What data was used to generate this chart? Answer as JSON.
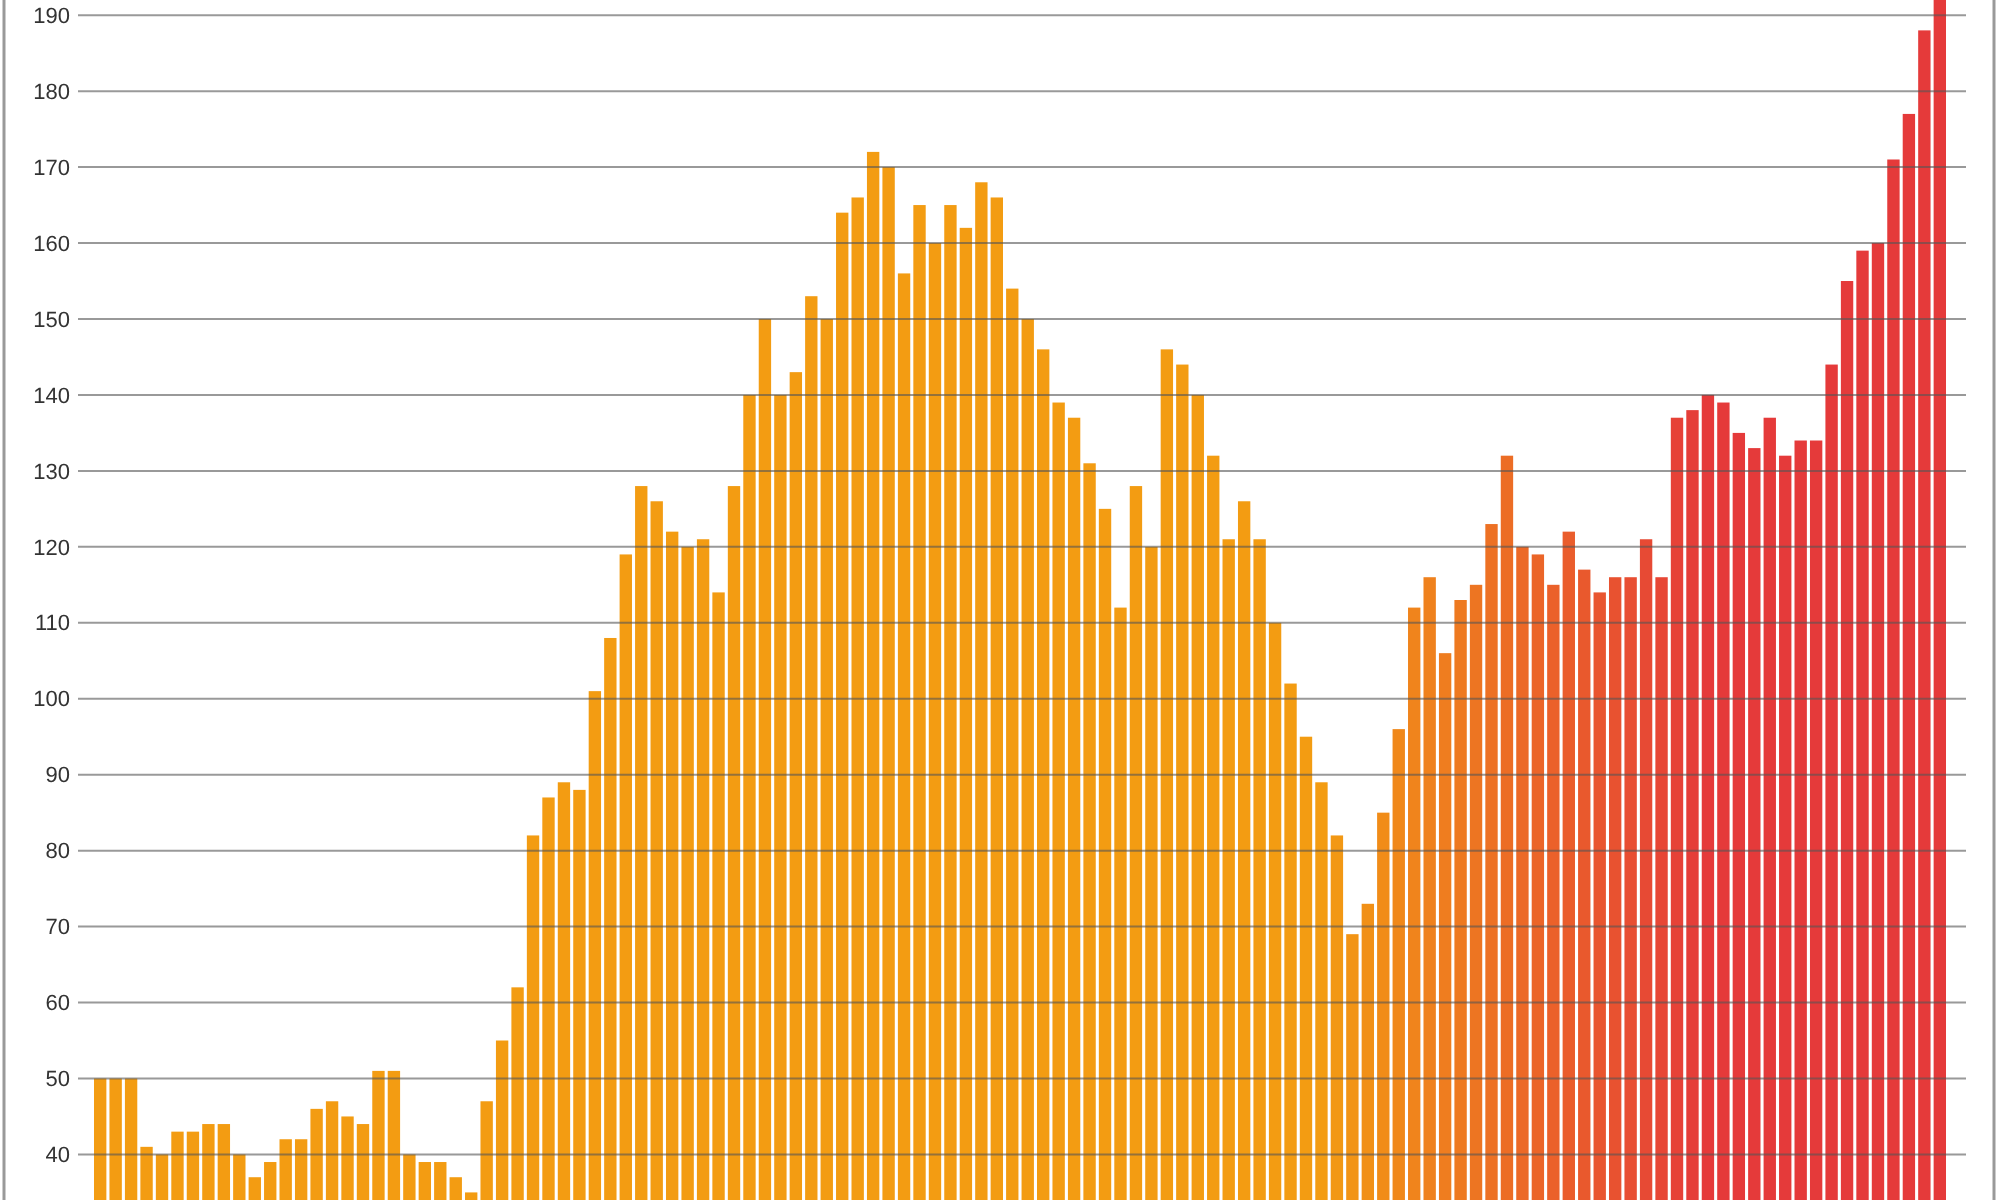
{
  "chart_data": {
    "type": "bar",
    "categories": [
      null,
      null,
      null,
      null,
      null,
      null,
      null,
      null,
      null,
      null,
      null,
      null,
      null,
      null,
      null,
      null,
      null,
      null,
      null,
      null,
      null,
      null,
      null,
      null,
      null,
      null,
      null,
      null,
      null,
      null,
      null,
      null,
      null,
      null,
      null,
      null,
      null,
      null,
      null,
      null,
      null,
      null,
      null,
      null,
      null,
      null,
      null,
      null,
      null,
      null,
      null,
      null,
      null,
      null,
      null,
      null,
      null,
      null,
      null,
      null,
      null,
      null,
      null,
      null,
      null,
      null,
      null,
      null,
      null,
      null,
      null,
      null,
      null,
      null,
      null,
      null,
      null,
      null,
      null,
      null,
      null,
      null,
      null,
      null,
      null,
      null,
      null,
      null,
      null,
      null,
      null,
      null,
      null,
      null,
      null,
      null,
      null,
      null,
      null,
      null,
      null,
      null,
      null,
      null,
      null,
      null,
      null,
      null,
      null,
      null,
      null,
      null,
      null,
      null,
      null,
      null,
      null,
      null,
      null,
      null
    ],
    "values": [
      50,
      50,
      50,
      41,
      40,
      43,
      43,
      44,
      44,
      40,
      37,
      39,
      42,
      42,
      46,
      47,
      45,
      44,
      51,
      51,
      40,
      39,
      39,
      37,
      35,
      47,
      55,
      62,
      82,
      87,
      89,
      88,
      101,
      108,
      119,
      128,
      126,
      122,
      120,
      121,
      114,
      128,
      140,
      150,
      140,
      143,
      153,
      150,
      164,
      166,
      172,
      170,
      156,
      165,
      160,
      165,
      162,
      168,
      166,
      154,
      150,
      146,
      139,
      137,
      131,
      125,
      112,
      128,
      120,
      146,
      144,
      140,
      132,
      121,
      126,
      121,
      110,
      102,
      95,
      89,
      82,
      69,
      73,
      85,
      96,
      112,
      116,
      106,
      113,
      115,
      123,
      132,
      120,
      119,
      115,
      122,
      117,
      114,
      116,
      116,
      121,
      116,
      137,
      138,
      140,
      139,
      135,
      133,
      137,
      132,
      134,
      134,
      144,
      155,
      159,
      160,
      171,
      177,
      188,
      192
    ],
    "colors": [
      "#f39c12",
      "#f39c12",
      "#f39c12",
      "#f39c12",
      "#f39c12",
      "#f39c12",
      "#f39c12",
      "#f39c12",
      "#f39c12",
      "#f39c12",
      "#f39c12",
      "#f39c12",
      "#f39c12",
      "#f39c12",
      "#f39c12",
      "#f39c12",
      "#f39c12",
      "#f39c12",
      "#f39c12",
      "#f39c12",
      "#f39c12",
      "#f39c12",
      "#f39c12",
      "#f39c12",
      "#f39c12",
      "#f39c12",
      "#f39c12",
      "#f39c12",
      "#f39c12",
      "#f39c12",
      "#f39c12",
      "#f39c12",
      "#f39c12",
      "#f39c12",
      "#f39c12",
      "#f39c12",
      "#f39c12",
      "#f39c12",
      "#f39c12",
      "#f39c12",
      "#f39c12",
      "#f39c12",
      "#f39c12",
      "#f39c12",
      "#f39c12",
      "#f39c12",
      "#f39c12",
      "#f39c12",
      "#f39c12",
      "#f39c12",
      "#f39c12",
      "#f39c12",
      "#f39c12",
      "#f39c12",
      "#f39c12",
      "#f39c12",
      "#f39c12",
      "#f39c12",
      "#f39c12",
      "#f39c12",
      "#f39c12",
      "#f39c12",
      "#f39c12",
      "#f39c12",
      "#f39c12",
      "#f39c12",
      "#f39c12",
      "#f39c12",
      "#f39c12",
      "#f39c12",
      "#f39c12",
      "#f39c12",
      "#f39c12",
      "#f39c12",
      "#f39c12",
      "#f39c12",
      "#f39c12",
      "#f39c12",
      "#f39c12",
      "#f39c12",
      "#f29814",
      "#f29415",
      "#f19017",
      "#f18c18",
      "#f0881a",
      "#f0841c",
      "#ef811d",
      "#ef7d1f",
      "#ee7920",
      "#ed7522",
      "#ed7124",
      "#ec6d25",
      "#ec6927",
      "#eb6528",
      "#eb612a",
      "#ea5d2c",
      "#e9592d",
      "#e9552f",
      "#e85230",
      "#e84e32",
      "#e74a34",
      "#e74635",
      "#e64237",
      "#e53e38",
      "#e53a3a",
      "#e53a3a",
      "#e53a3a",
      "#e53a3a",
      "#e53a3a",
      "#e53a3a",
      "#e53a3a",
      "#e53a3a",
      "#e53a3a",
      "#e53a3a",
      "#e53a3a",
      "#e53a3a",
      "#e53a3a",
      "#e53a3a",
      "#e53a3a",
      "#e53a3a"
    ],
    "ylim": [
      34,
      192
    ],
    "yticks": [
      40,
      50,
      60,
      70,
      80,
      90,
      100,
      110,
      120,
      130,
      140,
      150,
      160,
      170,
      180,
      190
    ],
    "tick_labels": "y",
    "grid": "y"
  }
}
